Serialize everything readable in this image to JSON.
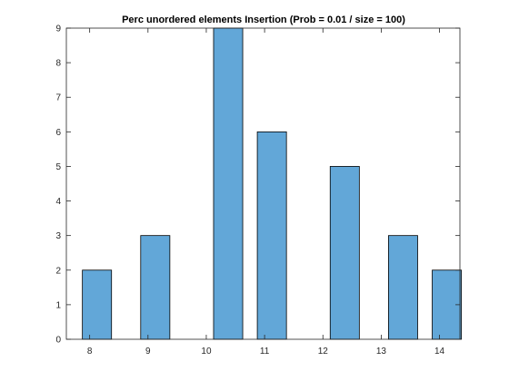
{
  "chart_data": {
    "type": "bar",
    "title": "Perc unordered elements Insertion (Prob = 0.01 / size = 100)",
    "xlabel": "",
    "ylabel": "",
    "x": [
      8.125,
      9.125,
      10.375,
      11.125,
      12.375,
      13.375,
      14.125
    ],
    "values": [
      2,
      3,
      9,
      6,
      5,
      3,
      2
    ],
    "xlim": [
      7.6,
      14.35
    ],
    "ylim": [
      0,
      9
    ],
    "xticks": [
      8,
      9,
      10,
      11,
      12,
      13,
      14
    ],
    "yticks": [
      0,
      1,
      2,
      3,
      4,
      5,
      6,
      7,
      8,
      9
    ],
    "bar_color": "#62a7d8",
    "edge_color": "#000000",
    "grid": false
  }
}
